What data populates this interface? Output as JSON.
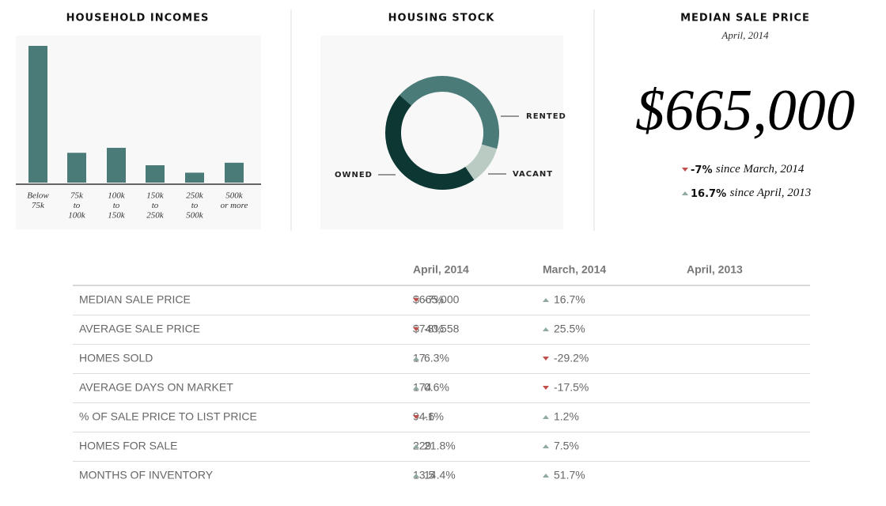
{
  "chart_data": [
    {
      "type": "bar",
      "title": "HOUSEHOLD INCOMES",
      "color": "#4a7b78",
      "categories": [
        [
          "Below",
          "75k"
        ],
        [
          "75k",
          "to",
          "100k"
        ],
        [
          "100k",
          "to",
          "150k"
        ],
        [
          "150k",
          "to",
          "250k"
        ],
        [
          "250k",
          "to",
          "500k"
        ],
        [
          "500k",
          "or more"
        ]
      ],
      "values": [
        55,
        12,
        14,
        7,
        4,
        8
      ]
    },
    {
      "type": "pie",
      "title": "HOUSING STOCK",
      "donut": true,
      "categories": [
        "RENTED",
        "VACANT",
        "OWNED"
      ],
      "values": [
        43,
        11,
        46
      ],
      "colors": [
        "#4a7b78",
        "#b9cbc3",
        "#0d3733"
      ]
    }
  ],
  "stat": {
    "title": "MEDIAN SALE PRICE",
    "subtitle": "April, 2014",
    "value": "$665,000",
    "changes": [
      {
        "change": "-7%",
        "text": "since March, 2014",
        "direction": "down"
      },
      {
        "change": "16.7%",
        "text": "since April, 2013",
        "direction": "up"
      }
    ]
  },
  "table": {
    "columns": [
      "April, 2014",
      "March, 2014",
      "April, 2013"
    ],
    "rows": [
      {
        "label": "MEDIAN SALE PRICE",
        "value": "$665,000",
        "changes": [
          {
            "text": "-7%",
            "direction": "down"
          },
          {
            "text": "16.7%",
            "direction": "up"
          }
        ]
      },
      {
        "label": "AVERAGE SALE PRICE",
        "value": "$740,558",
        "changes": [
          {
            "text": "-8%",
            "direction": "down"
          },
          {
            "text": "25.5%",
            "direction": "up"
          }
        ]
      },
      {
        "label": "HOMES SOLD",
        "value": "17",
        "changes": [
          {
            "text": "6.3%",
            "direction": "up"
          },
          {
            "text": "-29.2%",
            "direction": "down"
          }
        ]
      },
      {
        "label": "AVERAGE DAYS ON MARKET",
        "value": "174",
        "changes": [
          {
            "text": "0.6%",
            "direction": "up"
          },
          {
            "text": "-17.5%",
            "direction": "down"
          }
        ]
      },
      {
        "label": "% OF SALE PRICE TO LIST PRICE",
        "value": "94.6",
        "changes": [
          {
            "text": "-1%",
            "direction": "down"
          },
          {
            "text": "1.2%",
            "direction": "up"
          }
        ]
      },
      {
        "label": "HOMES FOR SALE",
        "value": "229",
        "changes": [
          {
            "text": "21.8%",
            "direction": "up"
          },
          {
            "text": "7.5%",
            "direction": "up"
          }
        ]
      },
      {
        "label": "MONTHS OF INVENTORY",
        "value": "13.5",
        "changes": [
          {
            "text": "14.4%",
            "direction": "up"
          },
          {
            "text": "51.7%",
            "direction": "up"
          }
        ]
      }
    ]
  }
}
